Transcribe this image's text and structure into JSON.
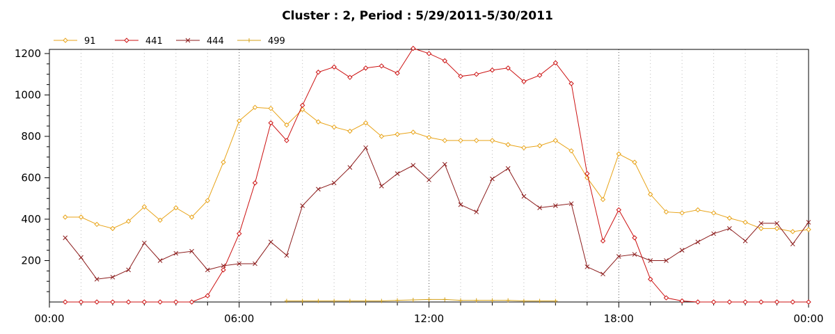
{
  "chart_data": {
    "type": "line",
    "title": "Cluster : 2, Period : 5/29/2011-5/30/2011",
    "xlabel": "",
    "ylabel": "",
    "x_ticks": [
      "00:00",
      "06:00",
      "12:00",
      "18:00",
      "00:00"
    ],
    "y_ticks": [
      200,
      400,
      600,
      800,
      1000,
      1200
    ],
    "xlim_hours": [
      0,
      24
    ],
    "ylim": [
      0,
      1220
    ],
    "grid": "vertical dotted at each hour, darker dotted at 6-hour marks",
    "legend_placement": "top-left",
    "x_hours": [
      0.5,
      1,
      1.5,
      2,
      2.5,
      3,
      3.5,
      4,
      4.5,
      5,
      5.5,
      6,
      6.5,
      7,
      7.5,
      8,
      8.5,
      9,
      9.5,
      10,
      10.5,
      11,
      11.5,
      12,
      12.5,
      13,
      13.5,
      14,
      14.5,
      15,
      15.5,
      16,
      16.5,
      17,
      17.5,
      18,
      18.5,
      19,
      19.5,
      20,
      20.5,
      21,
      21.5,
      22,
      22.5,
      23,
      23.5,
      24
    ],
    "series": [
      {
        "name": "91",
        "color": "#E8A317",
        "marker": "diamond",
        "values": [
          410,
          410,
          375,
          355,
          390,
          460,
          395,
          455,
          410,
          490,
          675,
          875,
          940,
          935,
          855,
          930,
          870,
          845,
          825,
          865,
          800,
          810,
          820,
          795,
          780,
          780,
          780,
          780,
          760,
          745,
          755,
          780,
          730,
          600,
          495,
          715,
          675,
          520,
          435,
          430,
          445,
          430,
          405,
          385,
          355,
          355,
          340,
          350
        ]
      },
      {
        "name": "441",
        "color": "#CC1111",
        "marker": "diamond",
        "values": [
          0,
          0,
          0,
          0,
          0,
          0,
          0,
          0,
          0,
          30,
          155,
          330,
          575,
          865,
          780,
          950,
          1110,
          1135,
          1085,
          1130,
          1140,
          1105,
          1225,
          1200,
          1165,
          1090,
          1100,
          1120,
          1130,
          1065,
          1095,
          1155,
          1055,
          620,
          295,
          445,
          310,
          110,
          20,
          5,
          0,
          0,
          0,
          0,
          0,
          0,
          0,
          0
        ]
      },
      {
        "name": "444",
        "color": "#8B1A1A",
        "marker": "x",
        "values": [
          310,
          215,
          110,
          120,
          155,
          285,
          200,
          235,
          245,
          155,
          175,
          185,
          185,
          290,
          225,
          465,
          545,
          575,
          650,
          745,
          560,
          620,
          660,
          590,
          665,
          470,
          435,
          595,
          645,
          510,
          455,
          465,
          475,
          170,
          135,
          220,
          230,
          200,
          200,
          250,
          290,
          330,
          355,
          295,
          380,
          380,
          280,
          385
        ]
      },
      {
        "name": "499",
        "color": "#D4A017",
        "marker": "plus",
        "values": [
          null,
          null,
          null,
          null,
          null,
          null,
          null,
          null,
          null,
          null,
          null,
          null,
          null,
          null,
          5,
          5,
          5,
          5,
          5,
          5,
          5,
          8,
          10,
          12,
          12,
          8,
          8,
          8,
          8,
          5,
          5,
          5,
          null,
          null,
          null,
          null,
          null,
          null,
          null,
          null,
          null,
          null,
          null,
          null,
          null,
          null,
          null,
          null
        ]
      }
    ]
  }
}
